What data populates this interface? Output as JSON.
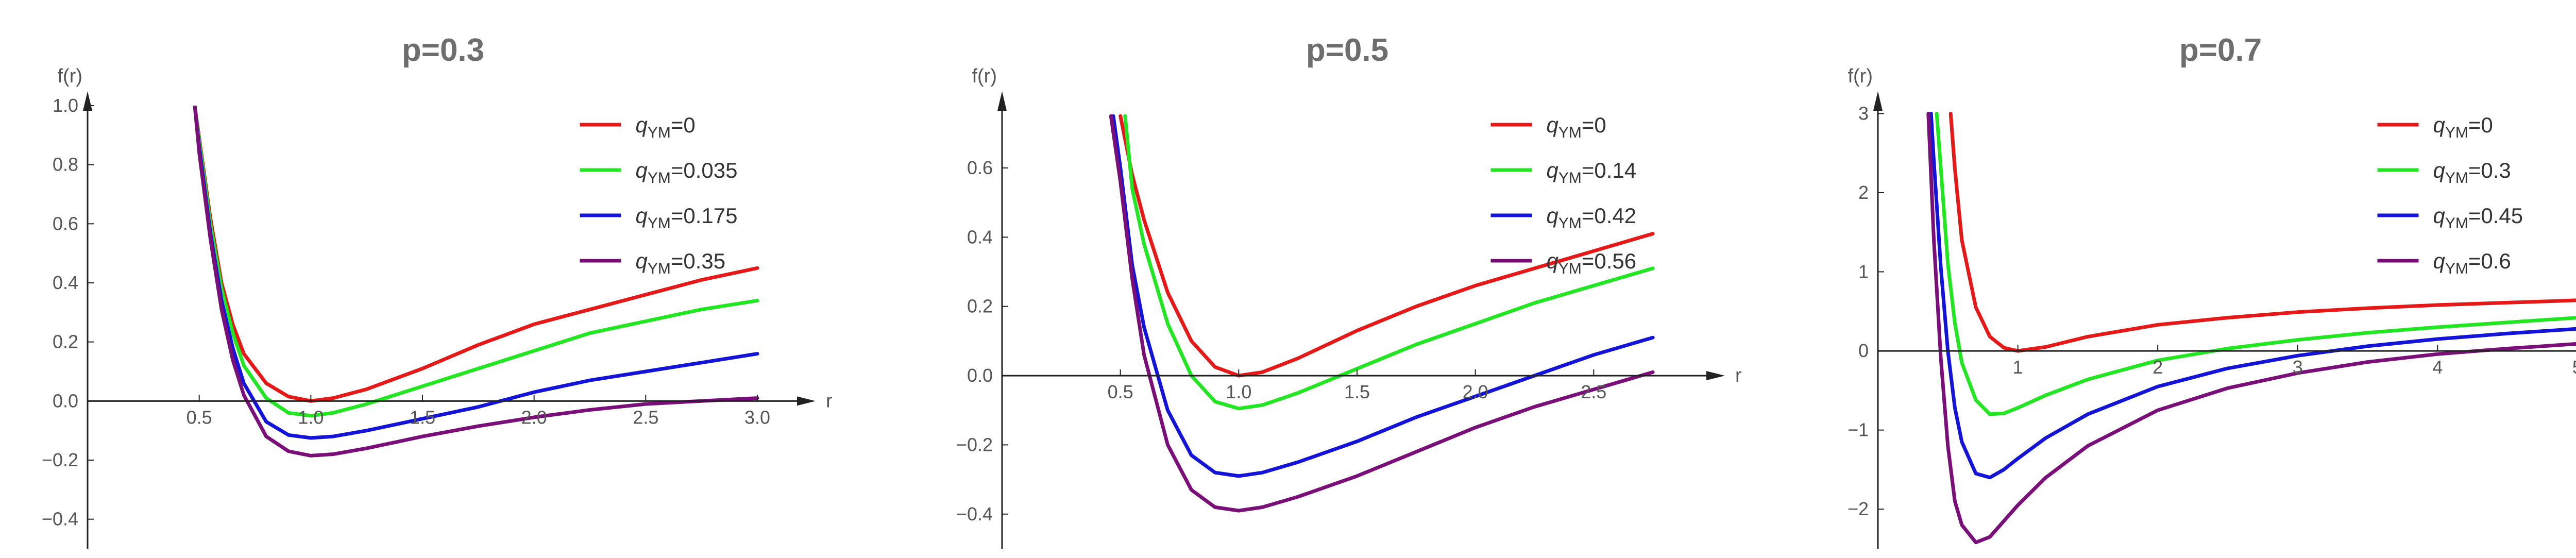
{
  "chart_data": [
    {
      "type": "line",
      "title": "p=0.3",
      "xlabel": "r",
      "ylabel": "f(r)",
      "xlim": [
        0,
        3.15
      ],
      "ylim": [
        -0.5,
        1.0
      ],
      "xticks": [
        "0.5",
        "1.0",
        "1.5",
        "2.0",
        "2.5",
        "3.0"
      ],
      "yticks": [
        "-0.4",
        "-0.2",
        "0.0",
        "0.2",
        "0.4",
        "0.6",
        "0.8",
        "1.0"
      ],
      "grid": false,
      "legend_position": "top-right",
      "series": [
        {
          "name": "qYM=0",
          "color": "#e61919",
          "x": [
            0.48,
            0.5,
            0.55,
            0.6,
            0.65,
            0.7,
            0.8,
            0.9,
            1.0,
            1.1,
            1.25,
            1.5,
            1.75,
            2.0,
            2.25,
            2.5,
            2.75,
            3.0
          ],
          "y": [
            1.0,
            0.89,
            0.62,
            0.4,
            0.26,
            0.16,
            0.06,
            0.015,
            0.0,
            0.01,
            0.04,
            0.11,
            0.19,
            0.26,
            0.31,
            0.36,
            0.41,
            0.45
          ]
        },
        {
          "name": "qYM=0.035",
          "color": "#22e622",
          "x": [
            0.48,
            0.5,
            0.55,
            0.6,
            0.65,
            0.7,
            0.8,
            0.9,
            1.0,
            1.1,
            1.25,
            1.5,
            1.75,
            2.0,
            2.25,
            2.5,
            2.75,
            3.0
          ],
          "y": [
            1.0,
            0.88,
            0.6,
            0.38,
            0.23,
            0.12,
            0.01,
            -0.04,
            -0.05,
            -0.04,
            -0.01,
            0.05,
            0.11,
            0.17,
            0.23,
            0.27,
            0.31,
            0.34
          ]
        },
        {
          "name": "qYM=0.175",
          "color": "#1414d9",
          "x": [
            0.48,
            0.5,
            0.55,
            0.6,
            0.65,
            0.7,
            0.8,
            0.9,
            1.0,
            1.1,
            1.25,
            1.5,
            1.75,
            2.0,
            2.25,
            2.5,
            2.75,
            3.0
          ],
          "y": [
            1.0,
            0.86,
            0.57,
            0.34,
            0.18,
            0.06,
            -0.07,
            -0.115,
            -0.125,
            -0.12,
            -0.1,
            -0.06,
            -0.02,
            0.03,
            0.07,
            0.1,
            0.13,
            0.16
          ]
        },
        {
          "name": "qYM=0.35",
          "color": "#7a0f7a",
          "x": [
            0.48,
            0.5,
            0.55,
            0.6,
            0.65,
            0.7,
            0.8,
            0.9,
            1.0,
            1.1,
            1.25,
            1.5,
            1.75,
            2.0,
            2.25,
            2.5,
            2.75,
            3.0
          ],
          "y": [
            1.0,
            0.84,
            0.55,
            0.31,
            0.14,
            0.02,
            -0.12,
            -0.17,
            -0.185,
            -0.18,
            -0.16,
            -0.12,
            -0.085,
            -0.055,
            -0.03,
            -0.01,
            0.0,
            0.01
          ]
        }
      ]
    },
    {
      "type": "line",
      "title": "p=0.5",
      "xlabel": "r",
      "ylabel": "f(r)",
      "xlim": [
        0,
        2.95
      ],
      "ylim": [
        -0.5,
        0.78
      ],
      "xticks": [
        "0.5",
        "1.0",
        "1.5",
        "2.0",
        "2.5"
      ],
      "yticks": [
        "-0.4",
        "-0.2",
        "0.0",
        "0.2",
        "0.4",
        "0.6"
      ],
      "grid": false,
      "legend_position": "top-right",
      "series": [
        {
          "name": "qYM=0",
          "color": "#e61919",
          "x": [
            0.5,
            0.55,
            0.6,
            0.7,
            0.8,
            0.9,
            1.0,
            1.1,
            1.25,
            1.5,
            1.75,
            2.0,
            2.25,
            2.5,
            2.75
          ],
          "y": [
            0.75,
            0.58,
            0.45,
            0.24,
            0.1,
            0.025,
            0.0,
            0.01,
            0.05,
            0.13,
            0.2,
            0.26,
            0.31,
            0.36,
            0.41
          ]
        },
        {
          "name": "qYM=0.14",
          "color": "#22e622",
          "x": [
            0.52,
            0.55,
            0.6,
            0.7,
            0.8,
            0.9,
            1.0,
            1.1,
            1.25,
            1.5,
            1.75,
            2.0,
            2.25,
            2.5,
            2.75
          ],
          "y": [
            0.75,
            0.54,
            0.38,
            0.15,
            0.0,
            -0.075,
            -0.095,
            -0.085,
            -0.05,
            0.02,
            0.09,
            0.15,
            0.21,
            0.26,
            0.31
          ]
        },
        {
          "name": "qYM=0.42",
          "color": "#1414d9",
          "x": [
            0.47,
            0.5,
            0.55,
            0.6,
            0.7,
            0.8,
            0.9,
            1.0,
            1.1,
            1.25,
            1.5,
            1.75,
            2.0,
            2.25,
            2.5,
            2.75
          ],
          "y": [
            0.75,
            0.6,
            0.32,
            0.14,
            -0.1,
            -0.23,
            -0.28,
            -0.29,
            -0.28,
            -0.25,
            -0.19,
            -0.12,
            -0.06,
            0.0,
            0.06,
            0.11
          ]
        },
        {
          "name": "qYM=0.56",
          "color": "#7a0f7a",
          "x": [
            0.46,
            0.5,
            0.55,
            0.6,
            0.7,
            0.8,
            0.9,
            1.0,
            1.1,
            1.25,
            1.5,
            1.75,
            2.0,
            2.25,
            2.5,
            2.75
          ],
          "y": [
            0.75,
            0.56,
            0.28,
            0.06,
            -0.2,
            -0.33,
            -0.38,
            -0.39,
            -0.38,
            -0.35,
            -0.29,
            -0.22,
            -0.15,
            -0.09,
            -0.04,
            0.01
          ]
        }
      ]
    },
    {
      "type": "line",
      "title": "p=0.7",
      "xlabel": "r",
      "ylabel": "f(r)",
      "xlim": [
        0,
        5.1
      ],
      "ylim": [
        -2.5,
        3.1
      ],
      "xticks": [
        "1",
        "2",
        "3",
        "4",
        "5"
      ],
      "yticks": [
        "-2",
        "-1",
        "0",
        "1",
        "2",
        "3"
      ],
      "grid": false,
      "legend_position": "top-right",
      "series": [
        {
          "name": "qYM=0",
          "color": "#e61919",
          "x": [
            0.52,
            0.55,
            0.6,
            0.7,
            0.8,
            0.9,
            1.0,
            1.2,
            1.5,
            2.0,
            2.5,
            3.0,
            3.5,
            4.0,
            4.5,
            5.0
          ],
          "y": [
            3.0,
            2.3,
            1.4,
            0.55,
            0.18,
            0.04,
            0.0,
            0.05,
            0.18,
            0.33,
            0.42,
            0.49,
            0.54,
            0.58,
            0.61,
            0.64
          ]
        },
        {
          "name": "qYM=0.3",
          "color": "#22e622",
          "x": [
            0.42,
            0.45,
            0.5,
            0.55,
            0.6,
            0.7,
            0.8,
            0.9,
            1.0,
            1.2,
            1.5,
            2.0,
            2.5,
            3.0,
            3.5,
            4.0,
            4.5,
            5.0
          ],
          "y": [
            3.0,
            2.3,
            1.1,
            0.35,
            -0.15,
            -0.62,
            -0.8,
            -0.79,
            -0.72,
            -0.56,
            -0.36,
            -0.12,
            0.03,
            0.14,
            0.23,
            0.3,
            0.36,
            0.42
          ]
        },
        {
          "name": "qYM=0.45",
          "color": "#1414d9",
          "x": [
            0.38,
            0.4,
            0.45,
            0.5,
            0.55,
            0.6,
            0.7,
            0.8,
            0.9,
            1.0,
            1.2,
            1.5,
            2.0,
            2.5,
            3.0,
            3.5,
            4.0,
            4.5,
            5.0
          ],
          "y": [
            3.0,
            2.4,
            1.05,
            0.0,
            -0.72,
            -1.15,
            -1.55,
            -1.6,
            -1.5,
            -1.36,
            -1.1,
            -0.8,
            -0.45,
            -0.22,
            -0.06,
            0.06,
            0.15,
            0.22,
            0.28
          ]
        },
        {
          "name": "qYM=0.6",
          "color": "#7a0f7a",
          "x": [
            0.36,
            0.38,
            0.4,
            0.45,
            0.5,
            0.55,
            0.6,
            0.7,
            0.8,
            0.9,
            1.0,
            1.2,
            1.5,
            2.0,
            2.5,
            3.0,
            3.5,
            4.0,
            4.5,
            5.0
          ],
          "y": [
            3.0,
            2.2,
            1.4,
            -0.1,
            -1.2,
            -1.9,
            -2.2,
            -2.42,
            -2.35,
            -2.15,
            -1.95,
            -1.6,
            -1.2,
            -0.75,
            -0.47,
            -0.28,
            -0.14,
            -0.04,
            0.03,
            0.09
          ]
        }
      ]
    }
  ]
}
